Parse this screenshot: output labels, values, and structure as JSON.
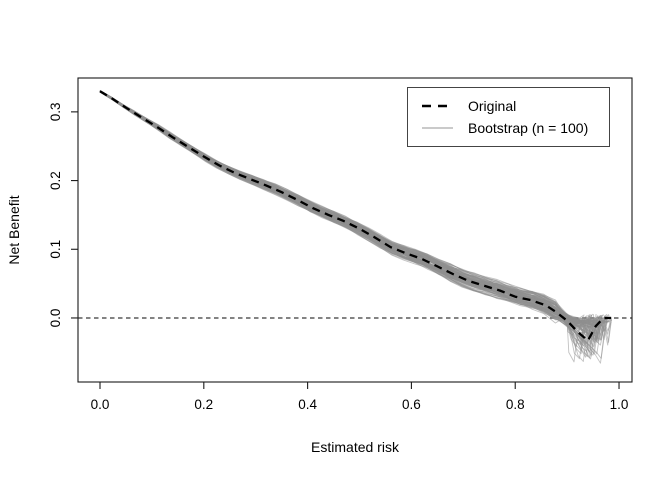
{
  "figure": {
    "background": "#ffffff"
  },
  "chart_data": {
    "type": "line",
    "title": "",
    "xlabel": "Estimated risk",
    "ylabel": "Net Benefit",
    "xlim": [
      -0.0424,
      1.025
    ],
    "ylim": [
      -0.0932,
      0.3493
    ],
    "grid": false,
    "x_ticks": {
      "values": [
        0,
        0.2,
        0.4,
        0.6,
        0.8,
        1.0
      ],
      "labels": [
        "0.0",
        "0.2",
        "0.4",
        "0.6",
        "0.8",
        "1.0"
      ]
    },
    "y_ticks": {
      "values": [
        0,
        0.1,
        0.2,
        0.3
      ],
      "labels": [
        "0.0",
        "0.1",
        "0.2",
        "0.3"
      ]
    },
    "reference_line": {
      "y": 0,
      "style": "dashed",
      "color": "#5a5a5a",
      "width": 1.4
    },
    "axis_color": "#1a1a1a",
    "legend": {
      "position": "top-right",
      "border_color": "#444444",
      "entries": [
        {
          "label": "Original",
          "line_style": "dashed",
          "color": "#000000"
        },
        {
          "label": "Bootstrap (n = 100)",
          "line_style": "solid",
          "color": "#ababab"
        }
      ]
    },
    "series": [
      {
        "name": "Original",
        "style": "dashed",
        "color": "#000000",
        "line_width": 2.3,
        "x": [
          0.0,
          0.02,
          0.05,
          0.08,
          0.11,
          0.14,
          0.17,
          0.2,
          0.23,
          0.26,
          0.29,
          0.32,
          0.35,
          0.38,
          0.41,
          0.44,
          0.47,
          0.5,
          0.53,
          0.56,
          0.59,
          0.62,
          0.65,
          0.68,
          0.71,
          0.74,
          0.77,
          0.8,
          0.83,
          0.86,
          0.88,
          0.9,
          0.92,
          0.94,
          0.955,
          0.97,
          0.985
        ],
        "y": [
          0.33,
          0.321,
          0.306,
          0.292,
          0.278,
          0.263,
          0.249,
          0.235,
          0.222,
          0.211,
          0.202,
          0.193,
          0.183,
          0.172,
          0.16,
          0.15,
          0.141,
          0.13,
          0.117,
          0.103,
          0.094,
          0.086,
          0.075,
          0.064,
          0.054,
          0.047,
          0.04,
          0.031,
          0.026,
          0.018,
          0.008,
          -0.004,
          -0.02,
          -0.033,
          -0.012,
          0.0,
          0.0
        ]
      },
      {
        "name": "Bootstrap",
        "style": "solid",
        "color": "#8f8f8f",
        "opacity": 0.55,
        "line_width": 0.9,
        "n": 100,
        "seed": 1234567,
        "generated": true,
        "spread": {
          "base": 0.0025,
          "growth": 0.013,
          "exponent": 1.25
        },
        "end_x_range": [
          0.93,
          0.988
        ],
        "fan_dip_range": [
          0.002,
          0.068
        ]
      }
    ]
  }
}
